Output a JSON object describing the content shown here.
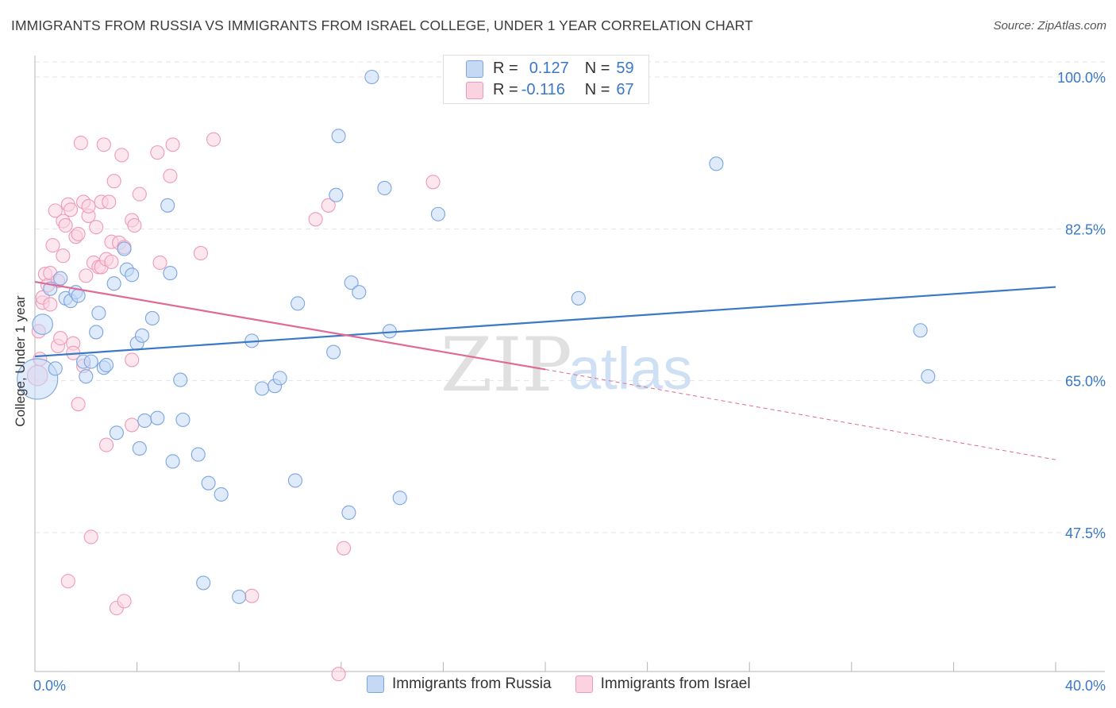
{
  "title": "IMMIGRANTS FROM RUSSIA VS IMMIGRANTS FROM ISRAEL COLLEGE, UNDER 1 YEAR CORRELATION CHART",
  "source": "Source: ZipAtlas.com",
  "colors": {
    "russia": "#3a78c8",
    "israel": "#e06a94",
    "russia_fill": "#c5d9f5",
    "israel_fill": "#fbd3e0",
    "axis_label": "#3a78c8"
  },
  "legend": {
    "r_label": "R =",
    "n_label": "N =",
    "russia": {
      "r": "0.127",
      "n": "59"
    },
    "israel": {
      "r": "-0.116",
      "n": "67"
    }
  },
  "watermark": {
    "zip": "ZIP",
    "atlas": "atlas"
  },
  "chart_data": {
    "type": "scatter",
    "title": "IMMIGRANTS FROM RUSSIA VS IMMIGRANTS FROM ISRAEL COLLEGE, UNDER 1 YEAR CORRELATION CHART",
    "xlabel": "",
    "ylabel": "College, Under 1 year",
    "xlim": [
      0,
      40
    ],
    "ylim": [
      30,
      102.5
    ],
    "x_tick_labels": [
      "0.0%",
      "40.0%"
    ],
    "y_ticks": [
      47.5,
      65.0,
      82.5,
      100.0
    ],
    "y_tick_labels": [
      "47.5%",
      "65.0%",
      "82.5%",
      "100.0%"
    ],
    "legend_entries": [
      "Immigrants from Russia",
      "Immigrants from Israel"
    ],
    "series": [
      {
        "name": "Immigrants from Russia",
        "trend": {
          "x": [
            0,
            40
          ],
          "y": [
            67.8,
            75.8
          ],
          "dashed_from": null
        },
        "points": [
          [
            0.1,
            65.2,
            3
          ],
          [
            0.3,
            71.5,
            1.5
          ],
          [
            0.6,
            75.6,
            1
          ],
          [
            0.8,
            66.4,
            1
          ],
          [
            1.0,
            76.8,
            1
          ],
          [
            1.2,
            74.5,
            1
          ],
          [
            1.4,
            74.2,
            1
          ],
          [
            1.6,
            75.2,
            1
          ],
          [
            1.7,
            74.8,
            1
          ],
          [
            1.9,
            67.2,
            1
          ],
          [
            2.0,
            65.5,
            1
          ],
          [
            2.2,
            67.2,
            1
          ],
          [
            2.4,
            70.6,
            1
          ],
          [
            2.5,
            72.8,
            1
          ],
          [
            2.7,
            66.5,
            1
          ],
          [
            2.8,
            66.8,
            1
          ],
          [
            3.1,
            76.2,
            1
          ],
          [
            3.2,
            59.0,
            1
          ],
          [
            3.5,
            80.2,
            1
          ],
          [
            3.6,
            77.8,
            1
          ],
          [
            3.8,
            77.2,
            1
          ],
          [
            4.0,
            69.3,
            1
          ],
          [
            4.1,
            57.2,
            1
          ],
          [
            4.2,
            70.2,
            1
          ],
          [
            4.3,
            60.4,
            1
          ],
          [
            4.6,
            72.2,
            1
          ],
          [
            4.8,
            60.7,
            1
          ],
          [
            5.2,
            85.2,
            1
          ],
          [
            5.3,
            77.4,
            1
          ],
          [
            5.4,
            55.7,
            1
          ],
          [
            5.7,
            65.1,
            1
          ],
          [
            5.8,
            60.5,
            1
          ],
          [
            6.4,
            56.5,
            1
          ],
          [
            6.6,
            41.7,
            1
          ],
          [
            6.8,
            53.2,
            1
          ],
          [
            7.3,
            51.9,
            1
          ],
          [
            8.0,
            40.1,
            1
          ],
          [
            8.5,
            69.6,
            1
          ],
          [
            8.9,
            64.1,
            1
          ],
          [
            9.4,
            64.4,
            1
          ],
          [
            9.6,
            65.3,
            1
          ],
          [
            10.3,
            73.9,
            1
          ],
          [
            10.2,
            53.5,
            1
          ],
          [
            11.7,
            68.3,
            1
          ],
          [
            11.8,
            86.4,
            1
          ],
          [
            11.9,
            93.2,
            1
          ],
          [
            12.3,
            49.8,
            1
          ],
          [
            12.4,
            76.3,
            1
          ],
          [
            12.7,
            75.2,
            1
          ],
          [
            13.2,
            100.0,
            1
          ],
          [
            13.7,
            87.2,
            1
          ],
          [
            13.9,
            70.7,
            1
          ],
          [
            14.3,
            51.5,
            1
          ],
          [
            15.8,
            84.2,
            1
          ],
          [
            21.3,
            74.5,
            1
          ],
          [
            26.7,
            90.0,
            1
          ],
          [
            34.7,
            70.8,
            1
          ],
          [
            35.0,
            65.5,
            1
          ]
        ]
      },
      {
        "name": "Immigrants from Israel",
        "trend": {
          "x": [
            0,
            20,
            40
          ],
          "y": [
            76.4,
            66.3,
            55.9
          ],
          "dashed_from": 20
        },
        "points": [
          [
            0.1,
            65.6,
            1.5
          ],
          [
            0.15,
            70.7,
            1
          ],
          [
            0.2,
            67.5,
            1
          ],
          [
            0.3,
            74.0,
            1
          ],
          [
            0.3,
            74.6,
            1
          ],
          [
            0.4,
            77.3,
            1
          ],
          [
            0.5,
            76.0,
            1
          ],
          [
            0.6,
            77.4,
            1
          ],
          [
            0.6,
            73.8,
            1
          ],
          [
            0.7,
            80.6,
            1
          ],
          [
            0.8,
            84.6,
            1
          ],
          [
            0.9,
            76.5,
            1
          ],
          [
            0.9,
            69.0,
            1
          ],
          [
            1.0,
            69.9,
            1
          ],
          [
            1.1,
            79.4,
            1
          ],
          [
            1.1,
            83.4,
            1
          ],
          [
            1.2,
            82.9,
            1
          ],
          [
            1.3,
            85.3,
            1
          ],
          [
            1.3,
            41.9,
            1
          ],
          [
            1.4,
            84.7,
            1
          ],
          [
            1.5,
            69.3,
            1
          ],
          [
            1.5,
            68.2,
            1
          ],
          [
            1.6,
            81.6,
            1
          ],
          [
            1.7,
            81.9,
            1
          ],
          [
            1.7,
            62.3,
            1
          ],
          [
            1.8,
            92.4,
            1
          ],
          [
            1.9,
            85.6,
            1
          ],
          [
            1.9,
            66.7,
            1
          ],
          [
            2.0,
            77.1,
            1
          ],
          [
            2.1,
            84.0,
            1
          ],
          [
            2.1,
            85.1,
            1
          ],
          [
            2.2,
            47.0,
            1
          ],
          [
            2.3,
            78.6,
            1
          ],
          [
            2.4,
            82.7,
            1
          ],
          [
            2.5,
            78.1,
            1
          ],
          [
            2.6,
            78.1,
            1
          ],
          [
            2.6,
            85.6,
            1
          ],
          [
            2.7,
            92.2,
            1
          ],
          [
            2.8,
            79.0,
            1
          ],
          [
            2.8,
            57.6,
            1
          ],
          [
            2.9,
            85.6,
            1
          ],
          [
            3.0,
            78.7,
            1
          ],
          [
            3.0,
            81.0,
            1
          ],
          [
            3.1,
            88.0,
            1
          ],
          [
            3.2,
            38.8,
            1
          ],
          [
            3.3,
            80.9,
            1
          ],
          [
            3.4,
            91.0,
            1
          ],
          [
            3.5,
            80.4,
            1
          ],
          [
            3.5,
            39.6,
            1
          ],
          [
            3.8,
            83.5,
            1
          ],
          [
            3.8,
            67.4,
            1
          ],
          [
            3.9,
            82.9,
            1
          ],
          [
            3.8,
            59.9,
            1
          ],
          [
            4.1,
            86.5,
            1
          ],
          [
            4.8,
            91.3,
            1
          ],
          [
            4.9,
            78.6,
            1
          ],
          [
            5.3,
            88.6,
            1
          ],
          [
            5.4,
            92.2,
            1
          ],
          [
            6.5,
            79.7,
            1
          ],
          [
            7.0,
            92.8,
            1
          ],
          [
            8.5,
            40.2,
            1
          ],
          [
            11.0,
            83.6,
            1
          ],
          [
            11.5,
            85.2,
            1
          ],
          [
            11.9,
            31.2,
            1
          ],
          [
            12.1,
            45.7,
            1
          ],
          [
            15.6,
            87.9,
            1
          ]
        ]
      }
    ]
  }
}
